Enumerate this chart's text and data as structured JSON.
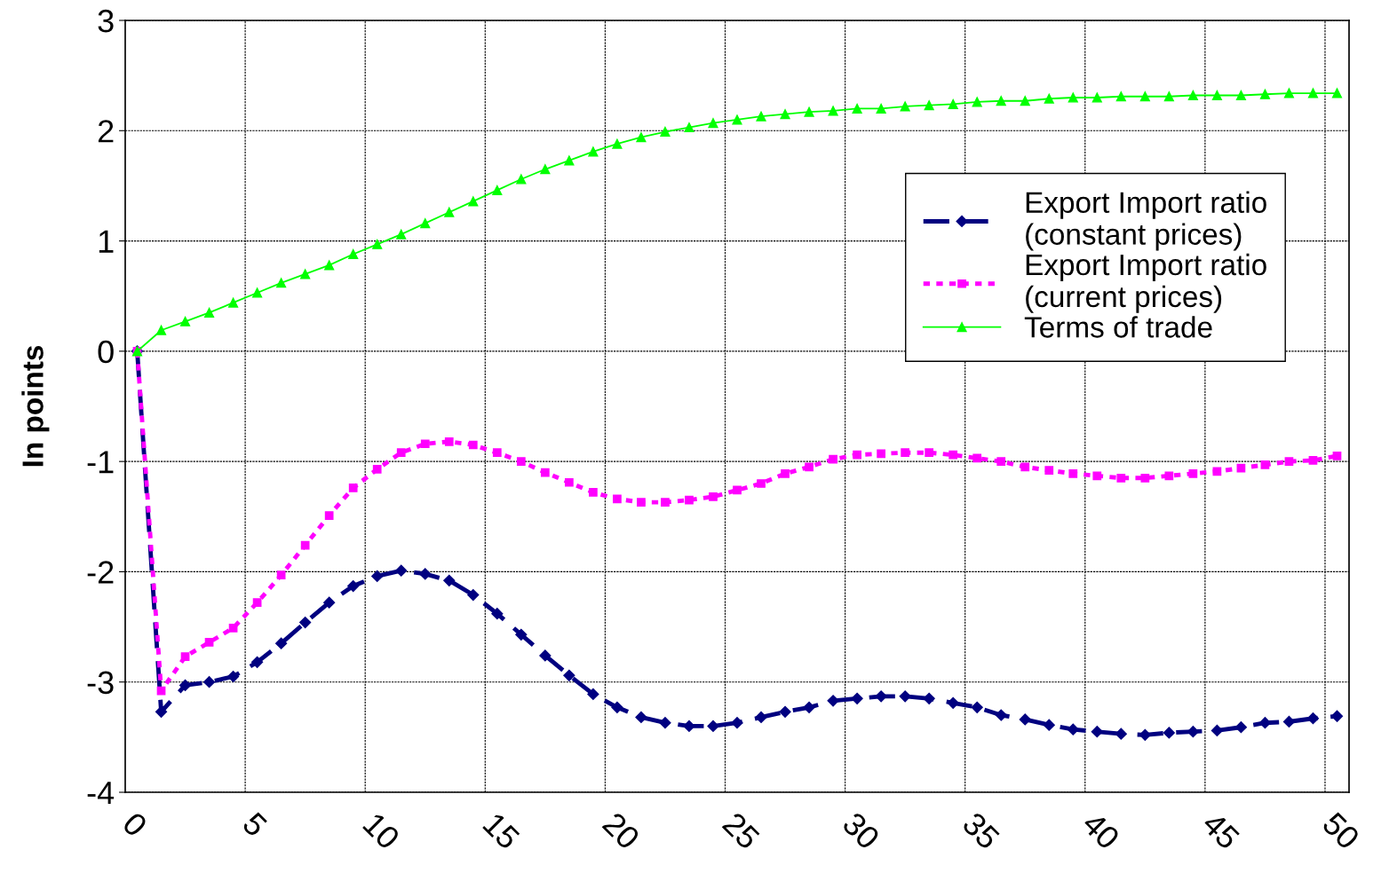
{
  "chart_data": {
    "type": "line",
    "ylabel": "In points",
    "categories": [
      "0",
      null,
      null,
      null,
      null,
      "5",
      null,
      null,
      null,
      null,
      "10",
      null,
      null,
      null,
      null,
      "15",
      null,
      null,
      null,
      null,
      "20",
      null,
      null,
      null,
      null,
      "25",
      null,
      null,
      null,
      null,
      "30",
      null,
      null,
      null,
      null,
      "35",
      null,
      null,
      null,
      null,
      "40",
      null,
      null,
      null,
      null,
      "45",
      null,
      null,
      null,
      null,
      "50"
    ],
    "ylim": [
      -4,
      3
    ],
    "yticks": [
      -4,
      -3,
      -2,
      -1,
      0,
      1,
      2,
      3
    ],
    "grid": true,
    "legend": "right",
    "series": [
      {
        "name": "Export Import ratio\n(constant prices)",
        "color": "#000080",
        "line_style": "dashed",
        "marker": "diamond",
        "values": [
          0,
          -3.27,
          -3.03,
          -3.0,
          -2.95,
          -2.82,
          -2.65,
          -2.46,
          -2.28,
          -2.13,
          -2.04,
          -1.99,
          -2.02,
          -2.08,
          -2.21,
          -2.38,
          -2.57,
          -2.76,
          -2.94,
          -3.11,
          -3.23,
          -3.32,
          -3.37,
          -3.4,
          -3.4,
          -3.37,
          -3.32,
          -3.27,
          -3.23,
          -3.17,
          -3.15,
          -3.13,
          -3.13,
          -3.15,
          -3.19,
          -3.23,
          -3.3,
          -3.34,
          -3.39,
          -3.43,
          -3.45,
          -3.47,
          -3.48,
          -3.46,
          -3.45,
          -3.44,
          -3.41,
          -3.37,
          -3.36,
          -3.33,
          -3.31
        ]
      },
      {
        "name": "Export Import ratio\n(current prices)",
        "color": "#ff00ff",
        "line_style": "dotted",
        "marker": "square",
        "values": [
          0,
          -3.08,
          -2.77,
          -2.64,
          -2.51,
          -2.28,
          -2.03,
          -1.76,
          -1.49,
          -1.24,
          -1.07,
          -0.92,
          -0.84,
          -0.82,
          -0.85,
          -0.92,
          -1.0,
          -1.1,
          -1.19,
          -1.28,
          -1.34,
          -1.37,
          -1.37,
          -1.35,
          -1.32,
          -1.26,
          -1.2,
          -1.11,
          -1.05,
          -0.98,
          -0.94,
          -0.93,
          -0.92,
          -0.92,
          -0.94,
          -0.97,
          -1.0,
          -1.05,
          -1.08,
          -1.11,
          -1.13,
          -1.15,
          -1.15,
          -1.13,
          -1.11,
          -1.09,
          -1.06,
          -1.03,
          -1.0,
          -0.99,
          -0.95
        ]
      },
      {
        "name": "Terms of trade",
        "color": "#00ff00",
        "line_style": "solid",
        "marker": "triangle",
        "values": [
          0,
          0.19,
          0.27,
          0.35,
          0.44,
          0.53,
          0.62,
          0.7,
          0.78,
          0.88,
          0.97,
          1.06,
          1.16,
          1.26,
          1.36,
          1.46,
          1.56,
          1.65,
          1.73,
          1.81,
          1.88,
          1.94,
          1.99,
          2.03,
          2.07,
          2.1,
          2.13,
          2.15,
          2.17,
          2.18,
          2.2,
          2.2,
          2.22,
          2.23,
          2.24,
          2.26,
          2.27,
          2.27,
          2.29,
          2.3,
          2.3,
          2.31,
          2.31,
          2.31,
          2.32,
          2.32,
          2.32,
          2.33,
          2.34,
          2.34,
          2.34
        ]
      }
    ]
  }
}
